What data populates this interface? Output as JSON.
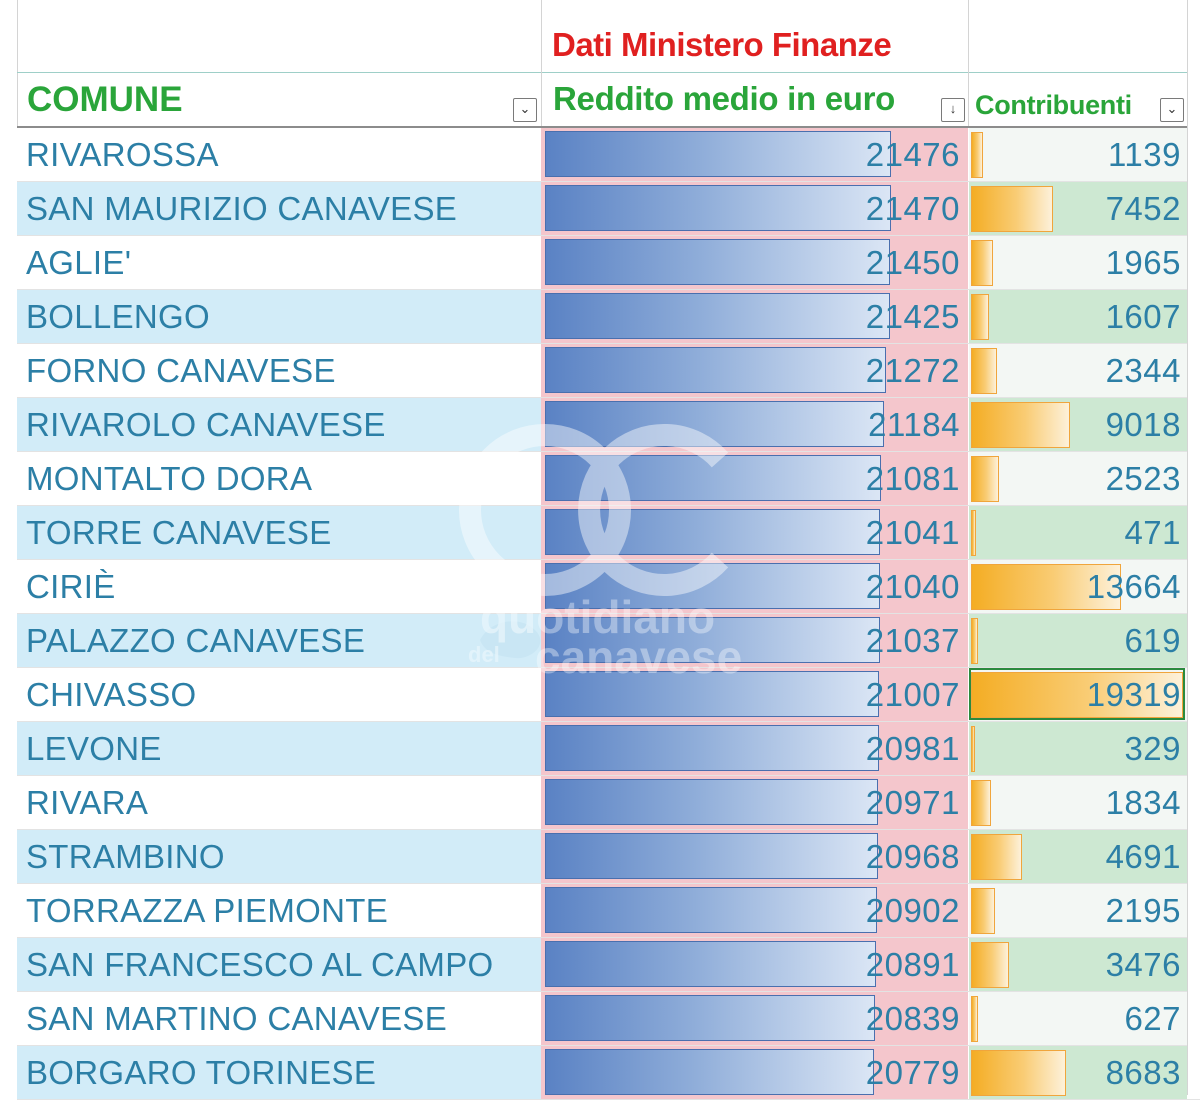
{
  "header": {
    "super_title": "Dati Ministero Finanze",
    "columns": [
      {
        "label": "COMUNE"
      },
      {
        "label": "Reddito medio in euro"
      },
      {
        "label": "Contribuenti"
      }
    ]
  },
  "colors": {
    "header_green": "#2aa53a",
    "super_title_red": "#e02020",
    "row_text": "#2c7fa6",
    "name_band": "#d2ecf8",
    "income_fill": "#f4c6cc",
    "income_bar": "#5a82c4",
    "count_bar": "#f4ad24"
  },
  "rows": [
    {
      "comune": "RIVAROSSA",
      "reddito": "21476",
      "contribuenti": "1139"
    },
    {
      "comune": "SAN MAURIZIO CANAVESE",
      "reddito": "21470",
      "contribuenti": "7452"
    },
    {
      "comune": "AGLIE'",
      "reddito": "21450",
      "contribuenti": "1965"
    },
    {
      "comune": "BOLLENGO",
      "reddito": "21425",
      "contribuenti": "1607"
    },
    {
      "comune": "FORNO CANAVESE",
      "reddito": "21272",
      "contribuenti": "2344"
    },
    {
      "comune": "RIVAROLO CANAVESE",
      "reddito": "21184",
      "contribuenti": "9018"
    },
    {
      "comune": "MONTALTO DORA",
      "reddito": "21081",
      "contribuenti": "2523"
    },
    {
      "comune": "TORRE CANAVESE",
      "reddito": "21041",
      "contribuenti": "471"
    },
    {
      "comune": "CIRIÈ",
      "reddito": "21040",
      "contribuenti": "13664"
    },
    {
      "comune": "PALAZZO CANAVESE",
      "reddito": "21037",
      "contribuenti": "619"
    },
    {
      "comune": "CHIVASSO",
      "reddito": "21007",
      "contribuenti": "19319"
    },
    {
      "comune": "LEVONE",
      "reddito": "20981",
      "contribuenti": "329"
    },
    {
      "comune": "RIVARA",
      "reddito": "20971",
      "contribuenti": "1834"
    },
    {
      "comune": "STRAMBINO",
      "reddito": "20968",
      "contribuenti": "4691"
    },
    {
      "comune": "TORRAZZA PIEMONTE",
      "reddito": "20902",
      "contribuenti": "2195"
    },
    {
      "comune": "SAN FRANCESCO AL CAMPO",
      "reddito": "20891",
      "contribuenti": "3476"
    },
    {
      "comune": "SAN MARTINO CANAVESE",
      "reddito": "20839",
      "contribuenti": "627"
    },
    {
      "comune": "BORGARO TORINESE",
      "reddito": "20779",
      "contribuenti": "8683"
    }
  ],
  "selected_cell": {
    "row": 10,
    "column": "contribuenti"
  },
  "watermark": {
    "line1": "quotidiano",
    "line2": "del",
    "line3": "canavese"
  }
}
